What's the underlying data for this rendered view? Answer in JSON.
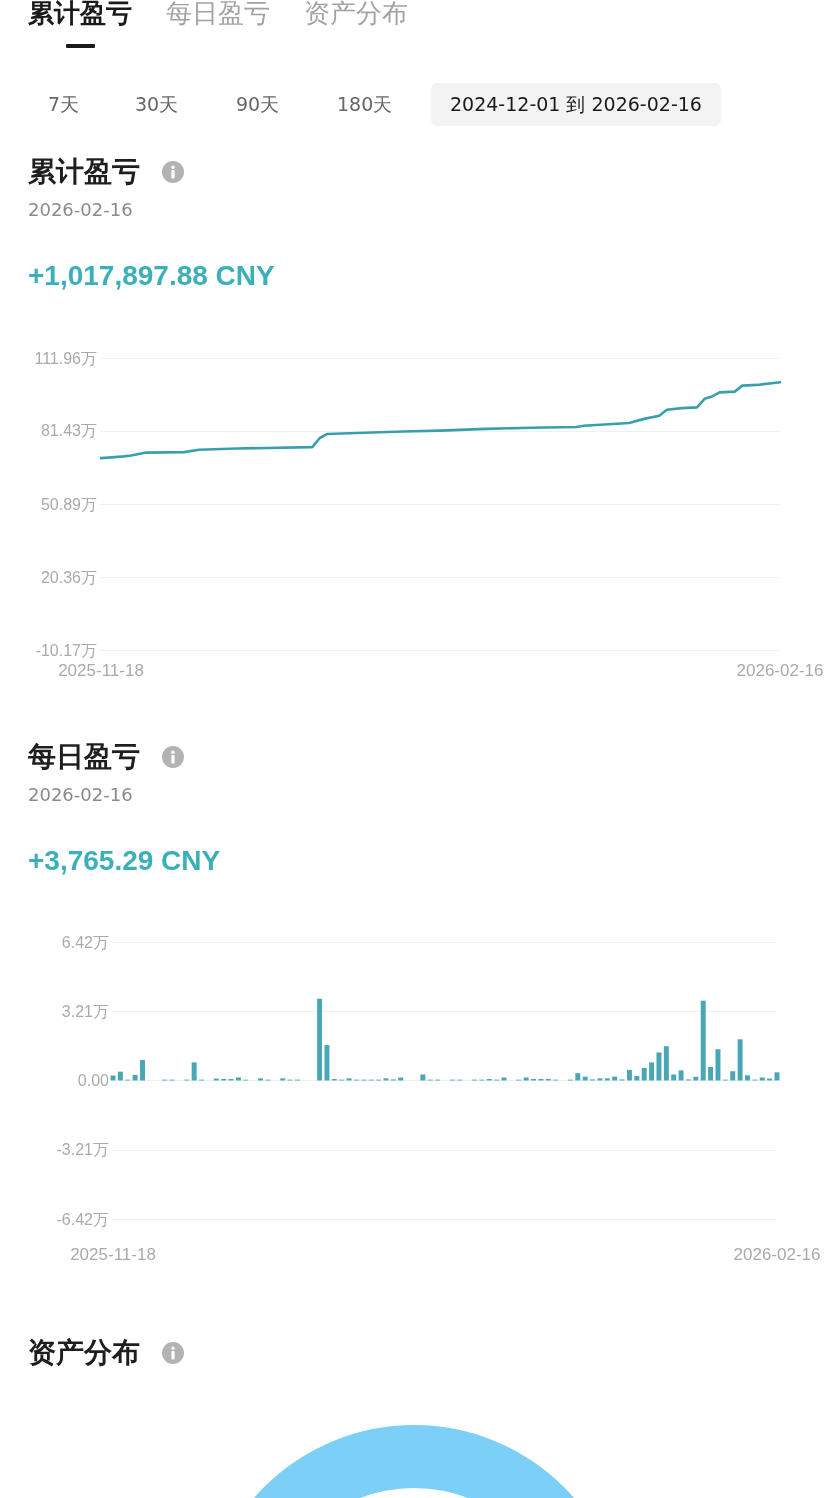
{
  "chart_data": [
    {
      "type": "other",
      "annotations": [
        "累计盈亏",
        "每日盈亏",
        "资产分布",
        "7天",
        "30天",
        "90天",
        "180天",
        "2024-12-01 到 2026-02-16"
      ]
    },
    {
      "type": "line",
      "title": "累计盈亏",
      "subtitle": "2026-02-16",
      "annotations": [
        "+1,017,897.88 CNY"
      ],
      "color": "#3a9fad",
      "x": [
        "2025-11-18",
        "2025-11-19",
        "2025-11-21",
        "2025-11-22",
        "2025-11-24",
        "2025-11-29",
        "2025-12-01",
        "2025-12-06",
        "2025-12-16",
        "2025-12-17",
        "2025-12-18",
        "2025-12-28",
        "2026-01-02",
        "2026-01-08",
        "2026-01-14",
        "2026-01-20",
        "2026-01-21",
        "2026-01-27",
        "2026-01-29",
        "2026-01-31",
        "2026-02-01",
        "2026-02-03",
        "2026-02-05",
        "2026-02-06",
        "2026-02-07",
        "2026-02-08",
        "2026-02-10",
        "2026-02-11",
        "2026-02-13",
        "2026-02-16"
      ],
      "values": [
        70.1,
        70.3,
        70.8,
        71.2,
        72.4,
        72.6,
        73.6,
        74.1,
        74.7,
        78.5,
        80.2,
        81.2,
        81.6,
        82.3,
        82.8,
        83.1,
        83.6,
        84.8,
        86.5,
        87.8,
        90.3,
        91.0,
        91.3,
        94.9,
        95.9,
        97.6,
        97.9,
        100.4,
        100.7,
        101.8
      ],
      "xlim": [
        "2025-11-18",
        "2026-02-16"
      ],
      "xticks": [
        "2025-11-18",
        "2026-02-16"
      ],
      "ylim": [
        -10.17,
        111.96
      ],
      "yticks": [
        {
          "value": -10.17,
          "label": "-10.17万"
        },
        {
          "value": 20.36,
          "label": "20.36万"
        },
        {
          "value": 50.89,
          "label": "50.89万"
        },
        {
          "value": 81.43,
          "label": "81.43万"
        },
        {
          "value": 111.96,
          "label": "111.96万"
        }
      ],
      "grid": "y"
    },
    {
      "type": "bar",
      "title": "每日盈亏",
      "subtitle": "2026-02-16",
      "annotations": [
        "+3,765.29 CNY"
      ],
      "color": "#48a6b6",
      "x": [
        "2025-11-18",
        "2025-11-19",
        "2025-11-20",
        "2025-11-21",
        "2025-11-22",
        "2025-11-23",
        "2025-11-24",
        "2025-11-25",
        "2025-11-26",
        "2025-11-27",
        "2025-11-28",
        "2025-11-29",
        "2025-11-30",
        "2025-12-01",
        "2025-12-02",
        "2025-12-03",
        "2025-12-04",
        "2025-12-05",
        "2025-12-06",
        "2025-12-07",
        "2025-12-08",
        "2025-12-09",
        "2025-12-10",
        "2025-12-11",
        "2025-12-12",
        "2025-12-13",
        "2025-12-14",
        "2025-12-15",
        "2025-12-16",
        "2025-12-17",
        "2025-12-18",
        "2025-12-19",
        "2025-12-20",
        "2025-12-21",
        "2025-12-22",
        "2025-12-23",
        "2025-12-24",
        "2025-12-25",
        "2025-12-26",
        "2025-12-27",
        "2025-12-28",
        "2025-12-29",
        "2025-12-30",
        "2025-12-31",
        "2026-01-01",
        "2026-01-02",
        "2026-01-03",
        "2026-01-04",
        "2026-01-05",
        "2026-01-06",
        "2026-01-07",
        "2026-01-08",
        "2026-01-09",
        "2026-01-10",
        "2026-01-11",
        "2026-01-12",
        "2026-01-13",
        "2026-01-14",
        "2026-01-15",
        "2026-01-16",
        "2026-01-17",
        "2026-01-18",
        "2026-01-19",
        "2026-01-20",
        "2026-01-21",
        "2026-01-22",
        "2026-01-23",
        "2026-01-24",
        "2026-01-25",
        "2026-01-26",
        "2026-01-27",
        "2026-01-28",
        "2026-01-29",
        "2026-01-30",
        "2026-01-31",
        "2026-02-01",
        "2026-02-02",
        "2026-02-03",
        "2026-02-04",
        "2026-02-05",
        "2026-02-06",
        "2026-02-07",
        "2026-02-08",
        "2026-02-09",
        "2026-02-10",
        "2026-02-11",
        "2026-02-12",
        "2026-02-13",
        "2026-02-14",
        "2026-02-15",
        "2026-02-16"
      ],
      "values": [
        0.23,
        0.41,
        0.04,
        0.26,
        0.95,
        null,
        null,
        0.04,
        0.04,
        null,
        0.04,
        0.84,
        0.04,
        null,
        0.09,
        0.07,
        0.07,
        0.14,
        0.04,
        null,
        0.1,
        0.04,
        null,
        0.1,
        0.04,
        0.04,
        null,
        null,
        3.79,
        1.64,
        0.07,
        0.04,
        0.1,
        0.04,
        0.04,
        0.04,
        0.04,
        0.1,
        0.05,
        0.14,
        null,
        null,
        0.28,
        0.04,
        0.04,
        null,
        0.04,
        0.04,
        null,
        0.04,
        0.04,
        0.07,
        0.04,
        0.14,
        null,
        0.04,
        0.14,
        0.07,
        0.07,
        0.07,
        0.04,
        null,
        0.04,
        0.34,
        0.18,
        0.05,
        0.1,
        0.1,
        0.18,
        0.05,
        0.49,
        0.21,
        0.58,
        0.84,
        1.3,
        1.59,
        0.28,
        0.47,
        0.05,
        0.17,
        3.7,
        0.63,
        1.45,
        0.04,
        0.43,
        1.91,
        0.24,
        0.04,
        0.14,
        0.09,
        0.38
      ],
      "xlim": [
        "2025-11-18",
        "2026-02-16"
      ],
      "xticks": [
        "2025-11-18",
        "2026-02-16"
      ],
      "ylim": [
        -6.42,
        6.42
      ],
      "yticks": [
        {
          "value": -6.42,
          "label": "-6.42万"
        },
        {
          "value": -3.21,
          "label": "-3.21万"
        },
        {
          "value": 0,
          "label": "0.00"
        },
        {
          "value": 3.21,
          "label": "3.21万"
        },
        {
          "value": 6.42,
          "label": "6.42万"
        }
      ],
      "grid": "y"
    },
    {
      "type": "other",
      "title": "资产分布"
    }
  ]
}
